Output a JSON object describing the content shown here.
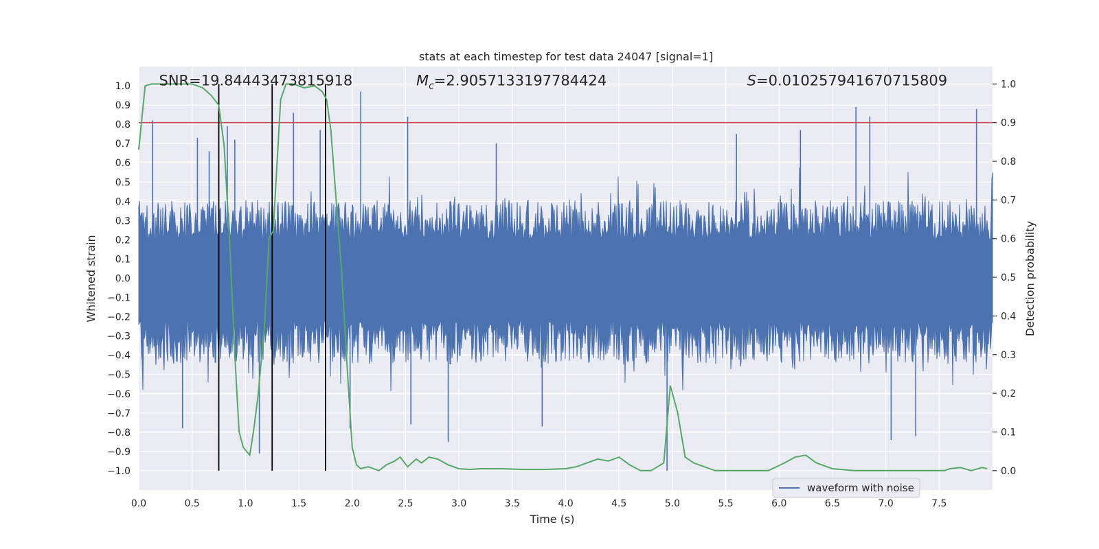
{
  "chart_data": {
    "type": "line",
    "title": "stats at each timestep for test data 24047 [signal=1]",
    "xlabel": "Time (s)",
    "ylabel_left": "Whitened strain",
    "ylabel_right": "Detection probability",
    "xlim": [
      0,
      8.0
    ],
    "ylim_left": [
      -1.1,
      1.1
    ],
    "ylim_right": [
      -0.05,
      1.045
    ],
    "x_ticks": [
      0,
      0.5,
      1,
      1.5,
      2,
      2.5,
      3,
      3.5,
      4,
      4.5,
      5,
      5.5,
      6,
      6.5,
      7,
      7.5
    ],
    "x_tick_labels": [
      "0.0",
      "0.5",
      "1.0",
      "1.5",
      "2.0",
      "2.5",
      "3.0",
      "3.5",
      "4.0",
      "4.5",
      "5.0",
      "5.5",
      "6.0",
      "6.5",
      "7.0",
      "7.5"
    ],
    "y_left_ticks": [
      1.0,
      0.9,
      0.8,
      0.7,
      0.6,
      0.5,
      0.4,
      0.3,
      0.2,
      0.1,
      0.0,
      -0.1,
      -0.2,
      -0.3,
      -0.4,
      -0.5,
      -0.6,
      -0.7,
      -0.8,
      -0.9,
      -1.0
    ],
    "y_left_tick_labels": [
      "1.0",
      "0.9",
      "0.8",
      "0.7",
      "0.6",
      "0.5",
      "0.4",
      "0.3",
      "0.2",
      "0.1",
      "0.0",
      "−0.1",
      "−0.2",
      "−0.3",
      "−0.4",
      "−0.5",
      "−0.6",
      "−0.7",
      "−0.8",
      "−0.9",
      "−1.0"
    ],
    "y_right_ticks": [
      1.0,
      0.9,
      0.8,
      0.7,
      0.6,
      0.5,
      0.4,
      0.3,
      0.2,
      0.1,
      0.0
    ],
    "y_right_tick_labels": [
      "1.0",
      "0.9",
      "0.8",
      "0.7",
      "0.6",
      "0.5",
      "0.4",
      "0.3",
      "0.2",
      "0.1",
      "0.0"
    ],
    "annotations": [
      {
        "key": "snr",
        "text": "SNR=19.84443473815918",
        "x": 0.19,
        "y": 1.03
      },
      {
        "key": "mc",
        "symbol": "M",
        "sub": "c",
        "value": "=2.9057133197784424",
        "x": 2.6,
        "y": 1.03
      },
      {
        "key": "s",
        "symbol": "S",
        "value": "=0.010257941670715809",
        "x": 5.7,
        "y": 1.03
      }
    ],
    "vertical_lines_x": [
      0.75,
      1.25,
      1.75
    ],
    "threshold_probability": 0.9,
    "legend": {
      "label": "waveform with noise",
      "placement": "lower-right"
    },
    "waveform": {
      "name": "waveform with noise",
      "duration_s": 8.0,
      "typical_envelope": 0.37,
      "spikes": [
        {
          "x": 0.13,
          "y": 0.82
        },
        {
          "x": 0.41,
          "y": -0.78
        },
        {
          "x": 0.55,
          "y": 0.73
        },
        {
          "x": 0.66,
          "y": 0.66
        },
        {
          "x": 0.83,
          "y": 0.79
        },
        {
          "x": 0.9,
          "y": 0.72
        },
        {
          "x": 1.13,
          "y": -0.91
        },
        {
          "x": 1.45,
          "y": 0.86
        },
        {
          "x": 1.7,
          "y": 0.77
        },
        {
          "x": 1.98,
          "y": -0.78
        },
        {
          "x": 2.08,
          "y": 0.97
        },
        {
          "x": 2.52,
          "y": 0.84
        },
        {
          "x": 2.55,
          "y": -0.76
        },
        {
          "x": 2.9,
          "y": -0.85
        },
        {
          "x": 3.35,
          "y": 0.7
        },
        {
          "x": 3.78,
          "y": -0.77
        },
        {
          "x": 4.95,
          "y": -1.0
        },
        {
          "x": 5.6,
          "y": 0.75
        },
        {
          "x": 6.2,
          "y": 0.77
        },
        {
          "x": 6.72,
          "y": 0.89
        },
        {
          "x": 6.85,
          "y": 0.84
        },
        {
          "x": 7.05,
          "y": -0.84
        },
        {
          "x": 7.28,
          "y": -0.82
        },
        {
          "x": 7.85,
          "y": 0.88
        }
      ]
    },
    "detection_probability": {
      "x": [
        0.0,
        0.06,
        0.12,
        0.2,
        0.3,
        0.4,
        0.5,
        0.6,
        0.68,
        0.75,
        0.8,
        0.85,
        0.9,
        0.94,
        0.98,
        1.04,
        1.08,
        1.12,
        1.18,
        1.22,
        1.26,
        1.33,
        1.38,
        1.45,
        1.55,
        1.65,
        1.72,
        1.76,
        1.8,
        1.85,
        1.9,
        1.95,
        2.0,
        2.04,
        2.08,
        2.15,
        2.25,
        2.32,
        2.4,
        2.45,
        2.52,
        2.6,
        2.65,
        2.72,
        2.8,
        2.9,
        3.0,
        3.1,
        3.2,
        3.4,
        3.6,
        3.8,
        4.0,
        4.1,
        4.2,
        4.3,
        4.4,
        4.5,
        4.6,
        4.7,
        4.8,
        4.92,
        4.98,
        5.05,
        5.12,
        5.2,
        5.3,
        5.4,
        5.5,
        5.7,
        5.9,
        6.05,
        6.15,
        6.25,
        6.35,
        6.5,
        6.7,
        7.0,
        7.3,
        7.55,
        7.6,
        7.7,
        7.8,
        7.9,
        7.95
      ],
      "y": [
        0.83,
        0.995,
        1.0,
        1.0,
        1.0,
        1.0,
        1.0,
        0.99,
        0.97,
        0.945,
        0.84,
        0.6,
        0.3,
        0.1,
        0.06,
        0.04,
        0.11,
        0.2,
        0.38,
        0.6,
        0.62,
        0.96,
        1.0,
        1.0,
        0.99,
        0.995,
        0.98,
        0.96,
        0.88,
        0.7,
        0.52,
        0.28,
        0.06,
        0.015,
        0.005,
        0.01,
        0.0,
        0.015,
        0.025,
        0.035,
        0.01,
        0.03,
        0.02,
        0.035,
        0.03,
        0.015,
        0.005,
        0.003,
        0.005,
        0.005,
        0.003,
        0.003,
        0.005,
        0.01,
        0.02,
        0.03,
        0.025,
        0.035,
        0.015,
        0.0,
        0.0,
        0.02,
        0.22,
        0.15,
        0.035,
        0.02,
        0.01,
        0.0,
        0.0,
        0.0,
        0.0,
        0.02,
        0.035,
        0.04,
        0.02,
        0.005,
        0.0,
        0.0,
        0.0,
        0.0,
        0.005,
        0.008,
        0.0,
        0.008,
        0.005
      ]
    },
    "colors": {
      "background": "#eaeaf2",
      "grid": "#ffffff",
      "waveform": "#4c72b0",
      "probability": "#55a868",
      "threshold": "#c44e52",
      "vlines": "#000000",
      "text": "#262626"
    }
  }
}
